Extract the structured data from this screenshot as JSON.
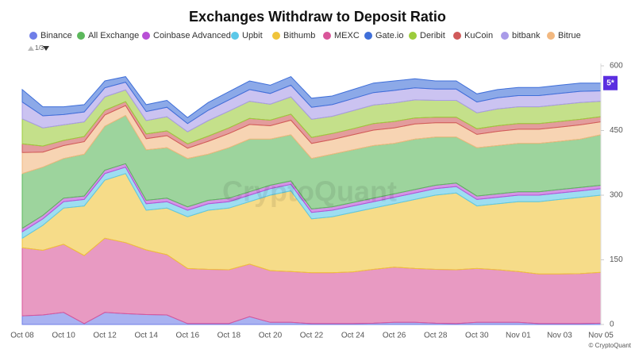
{
  "chart_data": {
    "type": "stacked_area",
    "title": "Exchanges Withdraw to Deposit Ratio",
    "legend_page": "1/3",
    "badge": "5*",
    "watermark": "CryptoQuant",
    "credit": "© CryptoQuant",
    "categories": [
      "Oct 08",
      null,
      "Oct 10",
      null,
      "Oct 12",
      null,
      "Oct 14",
      null,
      "Oct 16",
      null,
      "Oct 18",
      null,
      "Oct 20",
      null,
      "Oct 22",
      null,
      "Oct 24",
      null,
      "Oct 26",
      null,
      "Oct 28",
      null,
      "Oct 30",
      null,
      "Nov 01",
      null,
      "Nov 03",
      null,
      "Nov 05"
    ],
    "ylim": [
      0,
      600
    ],
    "yticks": [
      0,
      150,
      300,
      450,
      600
    ],
    "series": [
      {
        "name": "Binance",
        "color": "#6f7ee8",
        "values": [
          20,
          22,
          28,
          2,
          28,
          25,
          23,
          22,
          2,
          2,
          2,
          18,
          5,
          5,
          2,
          2,
          2,
          3,
          5,
          5,
          3,
          2,
          5,
          5,
          5,
          2,
          2,
          2,
          3
        ]
      },
      {
        "name": "All Exchange",
        "color": "#5cb85c",
        "values": [
          127,
          112,
          92,
          97,
          102,
          112,
          117,
          117,
          112,
          107,
          117,
          122,
          107,
          107,
          117,
          122,
          122,
          122,
          117,
          117,
          112,
          107,
          112,
          112,
          112,
          112,
          112,
          112,
          117
        ]
      },
      {
        "name": "Coinbase Advanced",
        "color": "#b84fd6",
        "values": [
          8,
          8,
          8,
          8,
          8,
          8,
          8,
          8,
          8,
          8,
          8,
          8,
          8,
          8,
          8,
          8,
          8,
          8,
          8,
          8,
          8,
          8,
          8,
          8,
          8,
          8,
          8,
          8,
          8
        ]
      },
      {
        "name": "Upbit",
        "color": "#5bc8e8",
        "values": [
          15,
          15,
          15,
          15,
          15,
          15,
          15,
          15,
          15,
          15,
          15,
          15,
          15,
          15,
          15,
          15,
          15,
          15,
          15,
          15,
          15,
          15,
          15,
          15,
          15,
          15,
          15,
          15,
          15
        ]
      },
      {
        "name": "Bithumb",
        "color": "#f0c43a",
        "values": [
          22,
          58,
          84,
          115,
          135,
          160,
          92,
          108,
          120,
          137,
          143,
          145,
          175,
          187,
          125,
          130,
          138,
          142,
          147,
          160,
          172,
          178,
          145,
          153,
          162,
          168,
          173,
          177,
          179
        ]
      },
      {
        "name": "MEXC",
        "color": "#d9569a",
        "values": [
          158,
          150,
          158,
          158,
          172,
          165,
          150,
          140,
          128,
          126,
          125,
          122,
          120,
          118,
          118,
          118,
          120,
          125,
          128,
          125,
          125,
          125,
          125,
          122,
          118,
          115,
          115,
          116,
          118
        ]
      },
      {
        "name": "Gate.io",
        "color": "#3f6fd9",
        "values": [
          29,
          21,
          18,
          17,
          16,
          13,
          16,
          16,
          14,
          18,
          19,
          20,
          19,
          20,
          21,
          20,
          21,
          22,
          22,
          21,
          19,
          19,
          19,
          19,
          19,
          19,
          19,
          19,
          18
        ]
      },
      {
        "name": "Deribit",
        "color": "#9ccc3c",
        "values": [
          58,
          42,
          36,
          34,
          31,
          27,
          31,
          33,
          28,
          36,
          39,
          40,
          37,
          40,
          42,
          40,
          42,
          43,
          43,
          42,
          39,
          39,
          37,
          39,
          39,
          39,
          39,
          39,
          36
        ]
      },
      {
        "name": "KuCoin",
        "color": "#d05a5a",
        "values": [
          20,
          14,
          12,
          12,
          11,
          9,
          11,
          11,
          10,
          12,
          13,
          14,
          13,
          14,
          14,
          14,
          14,
          15,
          15,
          14,
          13,
          13,
          13,
          13,
          13,
          13,
          13,
          13,
          12
        ]
      },
      {
        "name": "bitbank",
        "color": "#a99be8",
        "values": [
          39,
          28,
          24,
          23,
          21,
          18,
          21,
          22,
          19,
          24,
          26,
          27,
          25,
          27,
          28,
          27,
          28,
          29,
          29,
          28,
          26,
          26,
          25,
          26,
          26,
          26,
          26,
          26,
          24
        ]
      },
      {
        "name": "Bitrue",
        "color": "#f2b880",
        "values": [
          49,
          35,
          30,
          29,
          26,
          23,
          26,
          28,
          24,
          30,
          33,
          34,
          31,
          34,
          35,
          34,
          35,
          36,
          36,
          35,
          33,
          33,
          31,
          33,
          33,
          33,
          33,
          33,
          30
        ]
      }
    ]
  }
}
